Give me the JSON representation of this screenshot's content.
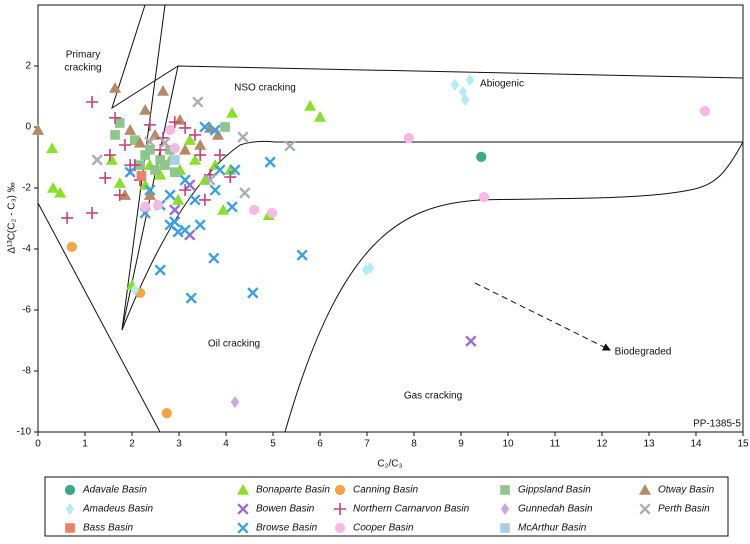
{
  "chart_data": {
    "type": "scatter",
    "x_label": "C₂/C₃",
    "y_label": "Δ¹³C(C₂ - C₃) ‰",
    "xlim": [
      0,
      15
    ],
    "ylim": [
      -10,
      4
    ],
    "xticks": [
      0,
      1,
      2,
      3,
      4,
      5,
      6,
      7,
      8,
      9,
      10,
      11,
      12,
      13,
      14,
      15
    ],
    "yticks": [
      -10,
      -8,
      -6,
      -4,
      -2,
      0,
      2
    ],
    "annotations": [
      "Primary",
      "cracking",
      "NSO cracking",
      "Abiogenic",
      "Oil cracking",
      "Biodegraded",
      "Gas cracking",
      "PP-1385-5"
    ],
    "series": [
      {
        "name": "Adavale Basin",
        "color": "#3aaa85",
        "marker": "circle",
        "x": [
          9.43
        ],
        "values": [
          -0.98
        ]
      },
      {
        "name": "Bonaparte Basin",
        "color": "#88e02a",
        "marker": "triangle",
        "x": [
          0.3,
          0.32,
          0.47,
          2.0,
          5.79,
          6.0,
          4.13,
          4.91,
          3.94,
          1.57,
          1.74,
          2.38,
          2.6,
          2.98,
          3.34,
          3.55,
          3.77,
          2.81,
          2.28,
          3.23,
          4.09,
          3.02
        ],
        "values": [
          -0.7,
          -2.0,
          -2.16,
          -5.18,
          0.69,
          0.33,
          0.46,
          -2.89,
          -2.72,
          -1.08,
          -1.84,
          -1.25,
          -1.57,
          -2.39,
          -1.08,
          -1.74,
          -1.25,
          -1.08,
          -1.9,
          -0.43,
          -1.41,
          -1.41
        ]
      },
      {
        "name": "Canning Basin",
        "color": "#f5a441",
        "marker": "circle",
        "x": [
          0.72,
          2.17,
          2.74
        ],
        "values": [
          -3.93,
          -5.44,
          -9.38
        ]
      },
      {
        "name": "Gippsland Basin",
        "color": "#8dc58a",
        "marker": "square",
        "x": [
          1.64,
          1.74,
          2.06,
          2.38,
          2.6,
          2.7,
          2.49,
          2.17,
          3.98,
          2.81,
          2.91,
          2.28
        ],
        "values": [
          -0.26,
          0.13,
          -0.43,
          -0.75,
          -1.08,
          -1.25,
          -1.41,
          -1.25,
          0.0,
          -0.75,
          -1.48,
          -0.92
        ]
      },
      {
        "name": "Otway Basin",
        "color": "#b88a63",
        "marker": "triangle",
        "x": [
          0,
          1.64,
          2.66,
          2.28,
          1.96,
          2.17,
          2.49,
          3.66,
          3.83,
          3.02,
          3.45,
          1.85,
          2.38,
          3.13
        ],
        "values": [
          -0.1,
          1.28,
          1.18,
          0.56,
          -0.1,
          -0.52,
          -0.26,
          -0.03,
          -0.26,
          0.23,
          -0.59,
          -2.23,
          -2.23,
          -0.75
        ]
      },
      {
        "name": "Amadeus Basin",
        "color": "#b3ecf7",
        "marker": "diamond",
        "x": [
          8.87,
          9.04,
          9.19,
          9.09,
          2.06,
          7.06,
          6.98
        ],
        "values": [
          1.38,
          1.15,
          1.54,
          0.89,
          -5.34,
          -4.62,
          -4.69
        ]
      },
      {
        "name": "Bowen Basin",
        "color": "#9b6cd4",
        "marker": "x",
        "x": [
          9.21,
          3.23,
          2.91,
          3.23
        ],
        "values": [
          -7.02,
          -3.54,
          -2.72,
          -1.9
        ]
      },
      {
        "name": "Northern Carnarvon Basin",
        "color": "#c8417a",
        "marker": "plus",
        "x": [
          1.15,
          0.62,
          1.15,
          1.53,
          1.43,
          1.64,
          1.85,
          1.96,
          2.17,
          2.6,
          2.91,
          3.13,
          3.45,
          3.66,
          3.87,
          4.09,
          3.55,
          3.13,
          1.74,
          2.38,
          2.66,
          3.34,
          2.06
        ],
        "values": [
          0.82,
          -2.98,
          -2.82,
          -0.92,
          -1.67,
          0.3,
          -0.59,
          -1.25,
          -1.74,
          -0.75,
          0.16,
          -0.03,
          -0.92,
          -1.57,
          -0.92,
          -1.64,
          -2.39,
          -2.07,
          -2.23,
          0.07,
          -0.36,
          -0.26,
          -1.25
        ]
      },
      {
        "name": "Gunnedah Basin",
        "color": "#c8a8e0",
        "marker": "diamond",
        "x": [
          4.19
        ],
        "values": [
          -9.02
        ]
      },
      {
        "name": "Perth Basin",
        "color": "#aab0b2",
        "marker": "x",
        "x": [
          1.26,
          3.4,
          4.36,
          4.4,
          5.36,
          2.7,
          3.66,
          2.38
        ],
        "values": [
          -1.08,
          0.82,
          -0.33,
          -2.16,
          -0.62,
          -0.52,
          -1.74,
          -0.49
        ]
      },
      {
        "name": "Bass Basin",
        "color": "#ef8266",
        "marker": "square",
        "x": [
          2.2
        ],
        "values": [
          -1.6
        ]
      },
      {
        "name": "Browse Basin",
        "color": "#3ea0e4",
        "marker": "x",
        "x": [
          3.55,
          3.77,
          2.6,
          2.91,
          2.98,
          3.13,
          3.45,
          3.26,
          3.74,
          4.57,
          5.62,
          4.13,
          4.94,
          2.38,
          1.96,
          2.28,
          2.81,
          3.13,
          3.34,
          3.77,
          3.87,
          4.19,
          2.6,
          2.81
        ],
        "values": [
          0.0,
          -0.1,
          -4.69,
          -3.11,
          -3.44,
          -3.38,
          -3.21,
          -5.61,
          -4.3,
          -5.44,
          -4.2,
          -2.62,
          -1.15,
          -2.07,
          -1.48,
          -2.82,
          -2.23,
          -1.74,
          -2.39,
          -2.07,
          -1.41,
          -1.41,
          -2.56,
          -3.21
        ]
      },
      {
        "name": "Cooper Basin",
        "color": "#f7b8e3",
        "marker": "circle",
        "x": [
          7.89,
          14.19,
          9.49,
          4.98,
          4.6,
          2.55,
          2.28,
          2.81,
          2.91
        ],
        "values": [
          -0.36,
          0.52,
          -2.3,
          -2.82,
          -2.72,
          -2.56,
          -2.62,
          -0.1,
          -0.69
        ]
      },
      {
        "name": "McArthur Basin",
        "color": "#aacde8",
        "marker": "square",
        "x": [
          2.91
        ],
        "values": [
          -1.08
        ]
      }
    ]
  }
}
